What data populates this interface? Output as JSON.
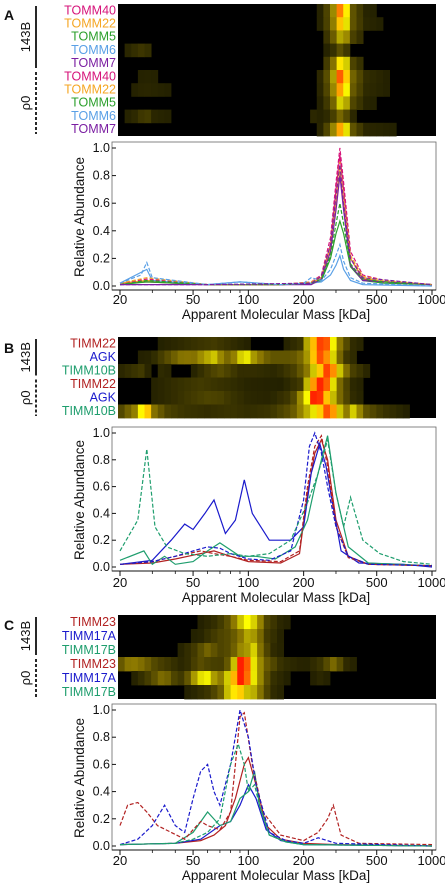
{
  "colors": {
    "TOMM40": "#d6147a",
    "TOMM22": "#f5a623",
    "TOMM5": "#2ca02c",
    "TOMM6": "#5aa0e6",
    "TOMM7": "#7b1fa2",
    "TIMM22": "#b22222",
    "AGK": "#1a1acc",
    "TIMM10B": "#1f9e6e",
    "TIMM23": "#b22222",
    "TIMM17A": "#1a1acc",
    "TIMM17B": "#1f9e6e"
  },
  "xlabel": "Apparent Molecular Mass [kDa]",
  "ylabel": "Relative Abundance",
  "chart_data": [
    {
      "panel": "A",
      "type": "line",
      "group_labels": [
        "143B",
        "ρ0"
      ],
      "heatmap_rows": [
        "TOMM40",
        "TOMM22",
        "TOMM5",
        "TOMM6",
        "TOMM7",
        "TOMM40",
        "TOMM22",
        "TOMM5",
        "TOMM6",
        "TOMM7"
      ],
      "xscale": "log",
      "xlim": [
        20,
        1000
      ],
      "ylim": [
        0,
        1.0
      ],
      "x_ticks": [
        "20",
        "50",
        "100",
        "200",
        "500",
        "1000"
      ],
      "y_ticks": [
        "0.0",
        "0.2",
        "0.4",
        "0.6",
        "0.8",
        "1.0"
      ],
      "series": [
        {
          "name": "TOMM40",
          "style": "solid",
          "x": [
            20,
            28,
            60,
            150,
            220,
            250,
            280,
            300,
            315,
            330,
            360,
            420,
            550,
            1000
          ],
          "values": [
            0.02,
            0.03,
            0.01,
            0.01,
            0.02,
            0.06,
            0.3,
            0.7,
            0.95,
            0.7,
            0.2,
            0.05,
            0.03,
            0.01
          ]
        },
        {
          "name": "TOMM22",
          "style": "solid",
          "x": [
            20,
            28,
            60,
            150,
            220,
            250,
            280,
            300,
            315,
            330,
            360,
            420,
            550,
            1000
          ],
          "values": [
            0.02,
            0.04,
            0.01,
            0.01,
            0.02,
            0.06,
            0.28,
            0.6,
            0.85,
            0.6,
            0.2,
            0.06,
            0.03,
            0.01
          ]
        },
        {
          "name": "TOMM5",
          "style": "solid",
          "x": [
            20,
            28,
            60,
            150,
            220,
            250,
            280,
            300,
            315,
            330,
            360,
            420,
            550,
            1000
          ],
          "values": [
            0.01,
            0.03,
            0.01,
            0.01,
            0.02,
            0.04,
            0.2,
            0.38,
            0.47,
            0.38,
            0.14,
            0.04,
            0.02,
            0.01
          ]
        },
        {
          "name": "TOMM6",
          "style": "solid",
          "x": [
            20,
            28,
            30,
            60,
            90,
            150,
            220,
            250,
            280,
            300,
            315,
            330,
            360,
            420,
            1000
          ],
          "values": [
            0.02,
            0.12,
            0.04,
            0.01,
            0.03,
            0.01,
            0.02,
            0.03,
            0.08,
            0.15,
            0.22,
            0.12,
            0.04,
            0.01,
            0.0
          ]
        },
        {
          "name": "TOMM7",
          "style": "solid",
          "x": [
            20,
            60,
            220,
            250,
            280,
            300,
            315,
            330,
            360,
            420,
            1000
          ],
          "values": [
            0.01,
            0.01,
            0.01,
            0.05,
            0.25,
            0.55,
            0.8,
            0.55,
            0.15,
            0.04,
            0.01
          ]
        },
        {
          "name": "TOMM40",
          "style": "dashed",
          "x": [
            20,
            28,
            60,
            150,
            220,
            250,
            280,
            300,
            315,
            330,
            360,
            420,
            550,
            1000
          ],
          "values": [
            0.02,
            0.05,
            0.01,
            0.01,
            0.03,
            0.08,
            0.35,
            0.75,
            1.0,
            0.75,
            0.25,
            0.08,
            0.04,
            0.01
          ]
        },
        {
          "name": "TOMM22",
          "style": "dashed",
          "x": [
            20,
            28,
            60,
            150,
            220,
            250,
            280,
            300,
            315,
            330,
            360,
            420,
            550,
            1000
          ],
          "values": [
            0.02,
            0.06,
            0.01,
            0.01,
            0.03,
            0.07,
            0.3,
            0.65,
            0.9,
            0.65,
            0.22,
            0.07,
            0.04,
            0.01
          ]
        },
        {
          "name": "TOMM5",
          "style": "dashed",
          "x": [
            20,
            28,
            60,
            150,
            220,
            250,
            280,
            300,
            315,
            330,
            360,
            420,
            550,
            1000
          ],
          "values": [
            0.01,
            0.04,
            0.01,
            0.01,
            0.02,
            0.05,
            0.22,
            0.45,
            0.6,
            0.45,
            0.16,
            0.05,
            0.03,
            0.01
          ]
        },
        {
          "name": "TOMM6",
          "style": "dashed",
          "x": [
            20,
            26,
            28,
            30,
            60,
            90,
            150,
            200,
            220,
            250,
            280,
            300,
            315,
            330,
            360,
            420,
            1000
          ],
          "values": [
            0.02,
            0.08,
            0.17,
            0.06,
            0.01,
            0.03,
            0.01,
            0.02,
            0.06,
            0.04,
            0.12,
            0.22,
            0.3,
            0.18,
            0.06,
            0.02,
            0.0
          ]
        },
        {
          "name": "TOMM7",
          "style": "dashed",
          "x": [
            20,
            60,
            220,
            250,
            280,
            300,
            315,
            330,
            360,
            420,
            1000
          ],
          "values": [
            0.01,
            0.01,
            0.02,
            0.07,
            0.3,
            0.65,
            0.88,
            0.6,
            0.2,
            0.06,
            0.01
          ]
        }
      ]
    },
    {
      "panel": "B",
      "type": "line",
      "group_labels": [
        "143B",
        "ρ0"
      ],
      "heatmap_rows": [
        "TIMM22",
        "AGK",
        "TIMM10B",
        "TIMM22",
        "AGK",
        "TIMM10B"
      ],
      "xscale": "log",
      "xlim": [
        20,
        1000
      ],
      "ylim": [
        0,
        1.0
      ],
      "x_ticks": [
        "20",
        "50",
        "100",
        "200",
        "500",
        "1000"
      ],
      "y_ticks": [
        "0.0",
        "0.2",
        "0.4",
        "0.6",
        "0.8",
        "1.0"
      ],
      "series": [
        {
          "name": "TIMM22",
          "style": "solid",
          "x": [
            20,
            30,
            40,
            55,
            65,
            80,
            100,
            150,
            190,
            210,
            230,
            250,
            270,
            300,
            350,
            450,
            1000
          ],
          "values": [
            0.02,
            0.03,
            0.06,
            0.1,
            0.12,
            0.08,
            0.04,
            0.03,
            0.1,
            0.55,
            0.85,
            0.95,
            0.8,
            0.35,
            0.08,
            0.02,
            0.01
          ]
        },
        {
          "name": "AGK",
          "style": "solid",
          "x": [
            20,
            30,
            38,
            45,
            50,
            58,
            65,
            75,
            85,
            95,
            105,
            130,
            170,
            200,
            220,
            245,
            265,
            285,
            320,
            400,
            700,
            1000
          ],
          "values": [
            0.02,
            0.05,
            0.2,
            0.32,
            0.28,
            0.4,
            0.5,
            0.25,
            0.35,
            0.65,
            0.4,
            0.2,
            0.2,
            0.3,
            0.7,
            0.92,
            0.75,
            0.5,
            0.12,
            0.03,
            0.02,
            0.0
          ]
        },
        {
          "name": "TIMM10B",
          "style": "solid",
          "x": [
            20,
            27,
            30,
            35,
            40,
            50,
            60,
            70,
            90,
            110,
            140,
            180,
            210,
            230,
            250,
            270,
            300,
            350,
            450,
            1000
          ],
          "values": [
            0.05,
            0.12,
            0.02,
            0.08,
            0.02,
            0.04,
            0.12,
            0.18,
            0.08,
            0.08,
            0.06,
            0.15,
            0.35,
            0.6,
            0.8,
            0.98,
            0.55,
            0.15,
            0.03,
            0.01
          ]
        },
        {
          "name": "TIMM22",
          "style": "dashed",
          "x": [
            20,
            30,
            40,
            55,
            65,
            80,
            100,
            150,
            190,
            210,
            230,
            250,
            270,
            300,
            350,
            450,
            1000
          ],
          "values": [
            0.02,
            0.04,
            0.08,
            0.12,
            0.1,
            0.08,
            0.05,
            0.04,
            0.12,
            0.6,
            0.9,
            0.98,
            0.75,
            0.3,
            0.07,
            0.02,
            0.01
          ]
        },
        {
          "name": "AGK",
          "style": "dashed",
          "x": [
            20,
            30,
            40,
            50,
            60,
            70,
            80,
            100,
            130,
            170,
            200,
            215,
            230,
            250,
            270,
            300,
            350,
            450,
            1000
          ],
          "values": [
            0.02,
            0.04,
            0.08,
            0.12,
            0.15,
            0.14,
            0.1,
            0.06,
            0.05,
            0.12,
            0.5,
            0.9,
            1.0,
            0.85,
            0.6,
            0.3,
            0.08,
            0.02,
            0.01
          ]
        },
        {
          "name": "TIMM10B",
          "style": "dashed",
          "x": [
            20,
            25,
            28,
            31,
            36,
            45,
            60,
            80,
            100,
            130,
            170,
            210,
            240,
            270,
            300,
            330,
            360,
            420,
            520,
            700,
            1000
          ],
          "values": [
            0.12,
            0.35,
            0.88,
            0.3,
            0.15,
            0.1,
            0.08,
            0.1,
            0.08,
            0.1,
            0.2,
            0.48,
            0.7,
            0.95,
            0.55,
            0.3,
            0.52,
            0.2,
            0.1,
            0.04,
            0.02
          ]
        }
      ]
    },
    {
      "panel": "C",
      "type": "line",
      "group_labels": [
        "143B",
        "ρ0"
      ],
      "heatmap_rows": [
        "TIMM23",
        "TIMM17A",
        "TIMM17B",
        "TIMM23",
        "TIMM17A",
        "TIMM17B"
      ],
      "xscale": "log",
      "xlim": [
        20,
        1000
      ],
      "ylim": [
        0,
        1.0
      ],
      "x_ticks": [
        "20",
        "50",
        "100",
        "200",
        "500",
        "1000"
      ],
      "y_ticks": [
        "0.0",
        "0.2",
        "0.4",
        "0.6",
        "0.8",
        "1.0"
      ],
      "series": [
        {
          "name": "TIMM23",
          "style": "solid",
          "x": [
            20,
            40,
            55,
            65,
            75,
            85,
            95,
            100,
            110,
            125,
            150,
            200,
            300,
            1000
          ],
          "values": [
            0.01,
            0.02,
            0.04,
            0.08,
            0.15,
            0.35,
            0.6,
            0.65,
            0.45,
            0.15,
            0.05,
            0.02,
            0.01,
            0.0
          ]
        },
        {
          "name": "TIMM17A",
          "style": "solid",
          "x": [
            20,
            40,
            55,
            70,
            80,
            90,
            100,
            110,
            125,
            150,
            200,
            1000
          ],
          "values": [
            0.01,
            0.02,
            0.05,
            0.15,
            0.18,
            0.3,
            0.45,
            0.35,
            0.12,
            0.04,
            0.01,
            0.0
          ]
        },
        {
          "name": "TIMM17B",
          "style": "solid",
          "x": [
            20,
            40,
            50,
            60,
            70,
            80,
            90,
            100,
            108,
            115,
            130,
            160,
            200,
            1000
          ],
          "values": [
            0.01,
            0.02,
            0.1,
            0.25,
            0.15,
            0.18,
            0.35,
            0.4,
            0.55,
            0.3,
            0.08,
            0.03,
            0.01,
            0.0
          ]
        },
        {
          "name": "TIMM23",
          "style": "dashed",
          "x": [
            20,
            22,
            25,
            28,
            32,
            38,
            45,
            50,
            55,
            60,
            70,
            80,
            85,
            90,
            95,
            105,
            120,
            150,
            200,
            240,
            270,
            290,
            320,
            400,
            1000
          ],
          "values": [
            0.15,
            0.3,
            0.32,
            0.25,
            0.15,
            0.1,
            0.05,
            0.12,
            0.18,
            0.15,
            0.12,
            0.25,
            0.6,
            0.95,
            0.98,
            0.6,
            0.25,
            0.08,
            0.04,
            0.1,
            0.2,
            0.3,
            0.08,
            0.02,
            0.01
          ]
        },
        {
          "name": "TIMM17A",
          "style": "dashed",
          "x": [
            20,
            25,
            30,
            35,
            40,
            45,
            50,
            55,
            60,
            65,
            70,
            80,
            90,
            100,
            110,
            130,
            160,
            200,
            240,
            300,
            1000
          ],
          "values": [
            0.01,
            0.05,
            0.15,
            0.3,
            0.15,
            0.1,
            0.35,
            0.55,
            0.6,
            0.4,
            0.3,
            0.6,
            1.0,
            0.8,
            0.45,
            0.1,
            0.04,
            0.02,
            0.06,
            0.02,
            0.0
          ]
        },
        {
          "name": "TIMM17B",
          "style": "dashed",
          "x": [
            20,
            40,
            50,
            60,
            70,
            80,
            88,
            95,
            100,
            108,
            115,
            130,
            160,
            200,
            1000
          ],
          "values": [
            0.01,
            0.02,
            0.05,
            0.1,
            0.2,
            0.6,
            0.75,
            0.6,
            0.4,
            0.45,
            0.3,
            0.08,
            0.03,
            0.01,
            0.0
          ]
        }
      ]
    }
  ]
}
